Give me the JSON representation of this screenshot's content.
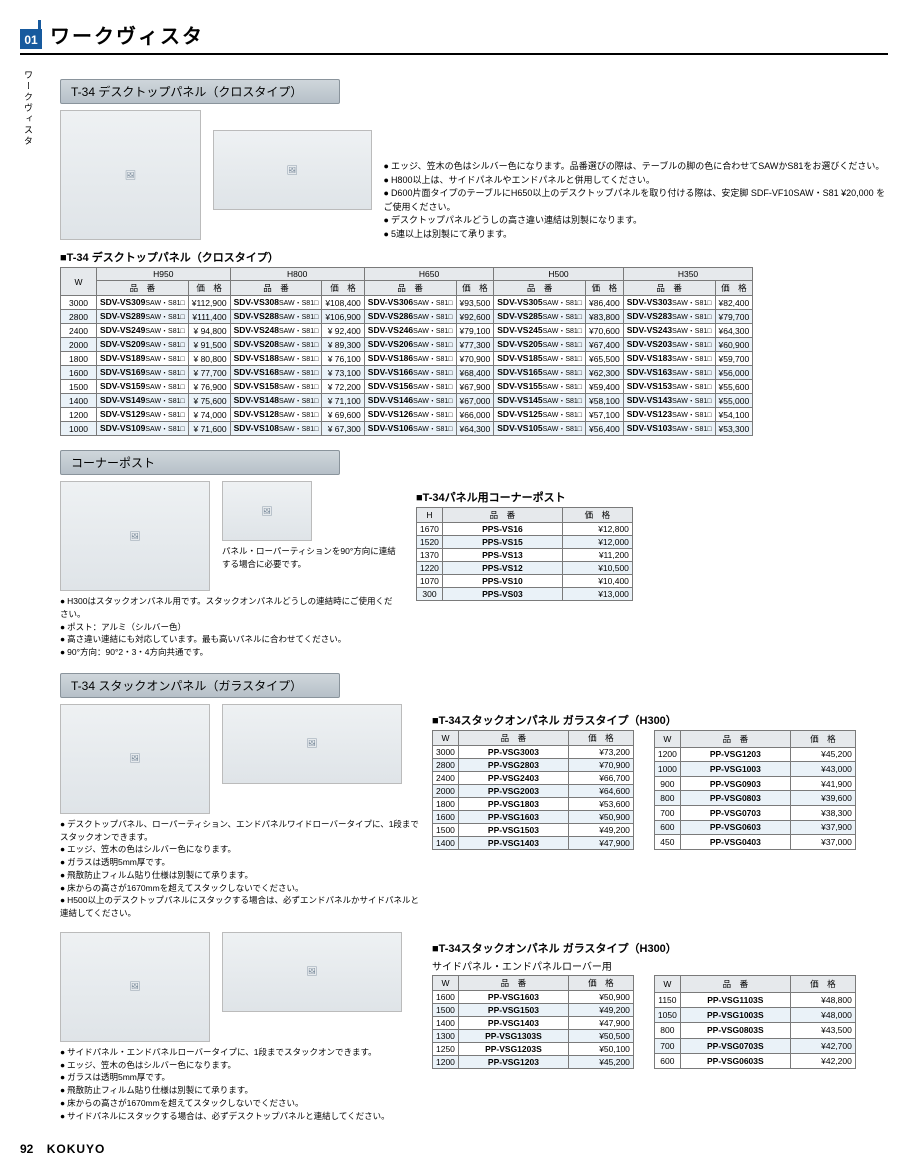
{
  "header": {
    "chapter": "01",
    "side_label": "ワークヴィスタ",
    "title": "ワークヴィスタ"
  },
  "footer": {
    "page": "92",
    "brand": "KOKUYO"
  },
  "section1": {
    "bar": "T-34 デスクトップパネル（クロスタイプ）",
    "notes": [
      "エッジ、笠木の色はシルバー色になります。品番選びの際は、テーブルの脚の色に合わせてSAWかS81をお選びください。",
      "H800以上は、サイドパネルやエンドパネルと併用してください。",
      "D600片面タイプのテーブルにH650以上のデスクトップパネルを取り付ける際は、安定脚 SDF-VF10SAW・S81 ¥20,000 をご使用ください。",
      "デスクトップパネルどうしの高さ違い連結は別製になります。",
      "5連以上は別製にて承ります。"
    ],
    "table_title": "T-34 デスクトップパネル（クロスタイプ）",
    "h_groups": [
      "H950",
      "H800",
      "H650",
      "H500",
      "H350"
    ],
    "col_labels": {
      "w": "W",
      "code": "品　番",
      "price": "価　格"
    },
    "code_suffix": "SAW・S81□",
    "rows": [
      {
        "w": "3000",
        "cells": [
          [
            "SDV-VS309",
            "¥112,900"
          ],
          [
            "SDV-VS308",
            "¥108,400"
          ],
          [
            "SDV-VS306",
            "¥93,500"
          ],
          [
            "SDV-VS305",
            "¥86,400"
          ],
          [
            "SDV-VS303",
            "¥82,400"
          ]
        ]
      },
      {
        "w": "2800",
        "cells": [
          [
            "SDV-VS289",
            "¥111,400"
          ],
          [
            "SDV-VS288",
            "¥106,900"
          ],
          [
            "SDV-VS286",
            "¥92,600"
          ],
          [
            "SDV-VS285",
            "¥83,800"
          ],
          [
            "SDV-VS283",
            "¥79,700"
          ]
        ]
      },
      {
        "w": "2400",
        "cells": [
          [
            "SDV-VS249",
            "¥ 94,800"
          ],
          [
            "SDV-VS248",
            "¥ 92,400"
          ],
          [
            "SDV-VS246",
            "¥79,100"
          ],
          [
            "SDV-VS245",
            "¥70,600"
          ],
          [
            "SDV-VS243",
            "¥64,300"
          ]
        ]
      },
      {
        "w": "2000",
        "cells": [
          [
            "SDV-VS209",
            "¥ 91,500"
          ],
          [
            "SDV-VS208",
            "¥ 89,300"
          ],
          [
            "SDV-VS206",
            "¥77,300"
          ],
          [
            "SDV-VS205",
            "¥67,400"
          ],
          [
            "SDV-VS203",
            "¥60,900"
          ]
        ]
      },
      {
        "w": "1800",
        "cells": [
          [
            "SDV-VS189",
            "¥ 80,800"
          ],
          [
            "SDV-VS188",
            "¥ 76,100"
          ],
          [
            "SDV-VS186",
            "¥70,900"
          ],
          [
            "SDV-VS185",
            "¥65,500"
          ],
          [
            "SDV-VS183",
            "¥59,700"
          ]
        ]
      },
      {
        "w": "1600",
        "cells": [
          [
            "SDV-VS169",
            "¥ 77,700"
          ],
          [
            "SDV-VS168",
            "¥ 73,100"
          ],
          [
            "SDV-VS166",
            "¥68,400"
          ],
          [
            "SDV-VS165",
            "¥62,300"
          ],
          [
            "SDV-VS163",
            "¥56,000"
          ]
        ]
      },
      {
        "w": "1500",
        "cells": [
          [
            "SDV-VS159",
            "¥ 76,900"
          ],
          [
            "SDV-VS158",
            "¥ 72,200"
          ],
          [
            "SDV-VS156",
            "¥67,900"
          ],
          [
            "SDV-VS155",
            "¥59,400"
          ],
          [
            "SDV-VS153",
            "¥55,600"
          ]
        ]
      },
      {
        "w": "1400",
        "cells": [
          [
            "SDV-VS149",
            "¥ 75,600"
          ],
          [
            "SDV-VS148",
            "¥ 71,100"
          ],
          [
            "SDV-VS146",
            "¥67,000"
          ],
          [
            "SDV-VS145",
            "¥58,100"
          ],
          [
            "SDV-VS143",
            "¥55,000"
          ]
        ]
      },
      {
        "w": "1200",
        "cells": [
          [
            "SDV-VS129",
            "¥ 74,000"
          ],
          [
            "SDV-VS128",
            "¥ 69,600"
          ],
          [
            "SDV-VS126",
            "¥66,000"
          ],
          [
            "SDV-VS125",
            "¥57,100"
          ],
          [
            "SDV-VS123",
            "¥54,100"
          ]
        ]
      },
      {
        "w": "1000",
        "cells": [
          [
            "SDV-VS109",
            "¥ 71,600"
          ],
          [
            "SDV-VS108",
            "¥ 67,300"
          ],
          [
            "SDV-VS106",
            "¥64,300"
          ],
          [
            "SDV-VS105",
            "¥56,400"
          ],
          [
            "SDV-VS103",
            "¥53,300"
          ]
        ]
      }
    ]
  },
  "section2": {
    "bar": "コーナーポスト",
    "caption": "パネル・ローパーティションを90°方向に連結する場合に必要です。",
    "notes": [
      "H300はスタックオンパネル用です。スタックオンパネルどうしの連結時にご使用ください。",
      "ポスト：アルミ（シルバー色）",
      "高さ違い連結にも対応しています。最も高いパネルに合わせてください。",
      "90°方向：90°2・3・4方向共通です。"
    ],
    "table_title": "T-34パネル用コーナーポスト",
    "col_labels": {
      "h": "H",
      "code": "品　番",
      "price": "価　格"
    },
    "rows": [
      {
        "h": "1670",
        "code": "PPS-VS16",
        "price": "¥12,800"
      },
      {
        "h": "1520",
        "code": "PPS-VS15",
        "price": "¥12,000"
      },
      {
        "h": "1370",
        "code": "PPS-VS13",
        "price": "¥11,200"
      },
      {
        "h": "1220",
        "code": "PPS-VS12",
        "price": "¥10,500"
      },
      {
        "h": "1070",
        "code": "PPS-VS10",
        "price": "¥10,400"
      },
      {
        "h": "300",
        "code": "PPS-VS03",
        "price": "¥13,000"
      }
    ]
  },
  "section3": {
    "bar": "T-34 スタックオンパネル（ガラスタイプ）",
    "block_a": {
      "notes": [
        "デスクトップパネル、ローパーティション、エンドパネルワイドローバータイプに、1段までスタックオンできます。",
        "エッジ、笠木の色はシルバー色になります。",
        "ガラスは透明5mm厚です。",
        "飛散防止フィルム貼り仕様は別製にて承ります。",
        "床からの高さが1670mmを超えてスタックしないでください。",
        "H500以上のデスクトップパネルにスタックする場合は、必ずエンドパネルかサイドパネルと連結してください。"
      ],
      "table_title": "T-34スタックオンパネル ガラスタイプ（H300）",
      "col_labels": {
        "w": "W",
        "code": "品　番",
        "price": "価　格"
      },
      "left": [
        {
          "w": "3000",
          "code": "PP-VSG3003",
          "price": "¥73,200"
        },
        {
          "w": "2800",
          "code": "PP-VSG2803",
          "price": "¥70,900"
        },
        {
          "w": "2400",
          "code": "PP-VSG2403",
          "price": "¥66,700"
        },
        {
          "w": "2000",
          "code": "PP-VSG2003",
          "price": "¥64,600"
        },
        {
          "w": "1800",
          "code": "PP-VSG1803",
          "price": "¥53,600"
        },
        {
          "w": "1600",
          "code": "PP-VSG1603",
          "price": "¥50,900"
        },
        {
          "w": "1500",
          "code": "PP-VSG1503",
          "price": "¥49,200"
        },
        {
          "w": "1400",
          "code": "PP-VSG1403",
          "price": "¥47,900"
        }
      ],
      "right": [
        {
          "w": "1200",
          "code": "PP-VSG1203",
          "price": "¥45,200"
        },
        {
          "w": "1000",
          "code": "PP-VSG1003",
          "price": "¥43,000"
        },
        {
          "w": "900",
          "code": "PP-VSG0903",
          "price": "¥41,900"
        },
        {
          "w": "800",
          "code": "PP-VSG0803",
          "price": "¥39,600"
        },
        {
          "w": "700",
          "code": "PP-VSG0703",
          "price": "¥38,300"
        },
        {
          "w": "600",
          "code": "PP-VSG0603",
          "price": "¥37,900"
        },
        {
          "w": "450",
          "code": "PP-VSG0403",
          "price": "¥37,000"
        }
      ]
    },
    "block_b": {
      "notes": [
        "サイドパネル・エンドパネルローバータイプに、1段までスタックオンできます。",
        "エッジ、笠木の色はシルバー色になります。",
        "ガラスは透明5mm厚です。",
        "飛散防止フィルム貼り仕様は別製にて承ります。",
        "床からの高さが1670mmを超えてスタックしないでください。",
        "サイドパネルにスタックする場合は、必ずデスクトップパネルと連結してください。"
      ],
      "table_title": "T-34スタックオンパネル ガラスタイプ（H300）",
      "table_subtitle": "サイドパネル・エンドパネルローバー用",
      "col_labels": {
        "w": "W",
        "code": "品　番",
        "price": "価　格"
      },
      "left": [
        {
          "w": "1600",
          "code": "PP-VSG1603",
          "price": "¥50,900"
        },
        {
          "w": "1500",
          "code": "PP-VSG1503",
          "price": "¥49,200"
        },
        {
          "w": "1400",
          "code": "PP-VSG1403",
          "price": "¥47,900"
        },
        {
          "w": "1300",
          "code": "PP-VSG1303S",
          "price": "¥50,500"
        },
        {
          "w": "1250",
          "code": "PP-VSG1203S",
          "price": "¥50,100"
        },
        {
          "w": "1200",
          "code": "PP-VSG1203",
          "price": "¥45,200"
        }
      ],
      "right": [
        {
          "w": "1150",
          "code": "PP-VSG1103S",
          "price": "¥48,800"
        },
        {
          "w": "1050",
          "code": "PP-VSG1003S",
          "price": "¥48,000"
        },
        {
          "w": "800",
          "code": "PP-VSG0803S",
          "price": "¥43,500"
        },
        {
          "w": "700",
          "code": "PP-VSG0703S",
          "price": "¥42,700"
        },
        {
          "w": "600",
          "code": "PP-VSG0603S",
          "price": "¥42,200"
        }
      ]
    }
  }
}
